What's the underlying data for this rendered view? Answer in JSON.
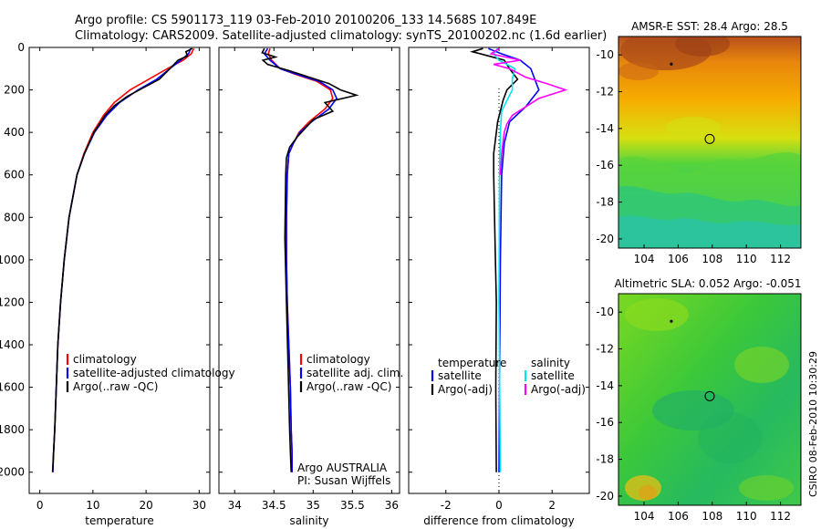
{
  "figure": {
    "title_line1": "Argo profile: CS 5901173_119 03-Feb-2010 20100206_133 14.568S 107.849E",
    "title_line2": "Climatology: CARS2009. Satellite-adjusted climatology: synTS_20100202.nc (1.6d earlier)",
    "side_stamp": "CSIRO 08-Feb-2010 10:30:29"
  },
  "colors": {
    "climatology": "#ff0000",
    "satellite": "#0000ff",
    "argo": "#000000",
    "cyan": "#00e5ee",
    "magenta": "#ff00ff"
  },
  "chart_data": [
    {
      "type": "line",
      "id": "temperature",
      "xlabel": "temperature",
      "ylabel": "",
      "xlim": [
        -2,
        32
      ],
      "ylim": [
        2100,
        0
      ],
      "xticks": [
        0,
        10,
        20,
        30
      ],
      "yticks": [
        0,
        200,
        400,
        600,
        800,
        1000,
        1200,
        1400,
        1600,
        1800,
        2000
      ],
      "legend": [
        "climatology",
        "satellite-adjusted climatology",
        "Argo(..raw -QC)"
      ],
      "series": [
        {
          "name": "climatology",
          "color": "#ff0000",
          "x": [
            29.0,
            28.5,
            27.0,
            24.0,
            20.5,
            17.0,
            14.0,
            12.0,
            10.0,
            8.3,
            7.0,
            5.5,
            4.6,
            3.9,
            3.4,
            3.1,
            2.8,
            2.6,
            2.45
          ],
          "y": [
            5,
            30,
            60,
            100,
            150,
            200,
            260,
            320,
            400,
            500,
            600,
            800,
            1000,
            1200,
            1400,
            1600,
            1800,
            1900,
            2000
          ]
        },
        {
          "name": "satellite-adjusted climatology",
          "color": "#0000ff",
          "x": [
            28.4,
            28.0,
            26.5,
            24.5,
            22.0,
            18.5,
            15.0,
            12.6,
            10.3,
            8.4,
            7.0,
            5.5,
            4.6,
            3.9,
            3.4,
            3.1,
            2.8,
            2.6,
            2.45
          ],
          "y": [
            5,
            30,
            60,
            100,
            150,
            200,
            260,
            320,
            400,
            500,
            600,
            800,
            1000,
            1200,
            1400,
            1600,
            1800,
            1900,
            2000
          ]
        },
        {
          "name": "Argo(..raw -QC)",
          "color": "#000000",
          "x": [
            28.7,
            27.5,
            27.8,
            26.0,
            24.5,
            22.5,
            19.5,
            16.5,
            14.0,
            12.3,
            10.2,
            8.4,
            7.0,
            5.5,
            4.6,
            3.9,
            3.4,
            3.1,
            2.8,
            2.6,
            2.4
          ],
          "y": [
            5,
            20,
            40,
            60,
            100,
            150,
            190,
            230,
            275,
            320,
            400,
            500,
            600,
            800,
            1000,
            1200,
            1400,
            1600,
            1800,
            1900,
            2000
          ]
        }
      ]
    },
    {
      "type": "line",
      "id": "salinity",
      "xlabel": "salinity",
      "xlim": [
        33.8,
        36.1
      ],
      "ylim": [
        2100,
        0
      ],
      "xticks": [
        34,
        34.5,
        35,
        35.5,
        36
      ],
      "legend": [
        "climatology",
        "satellite adj. clim.",
        "Argo(..raw -QC)"
      ],
      "annotations": [
        "Argo AUSTRALIA",
        "PI: Susan Wijffels"
      ],
      "series": [
        {
          "name": "climatology",
          "color": "#ff0000",
          "x": [
            34.45,
            34.43,
            34.47,
            34.58,
            34.8,
            35.05,
            35.22,
            35.25,
            35.15,
            34.95,
            34.82,
            34.75,
            34.69,
            34.67,
            34.66,
            34.66,
            34.67,
            34.69,
            34.71,
            34.72,
            34.73,
            34.73
          ],
          "y": [
            5,
            30,
            60,
            100,
            130,
            160,
            200,
            240,
            290,
            350,
            400,
            450,
            500,
            600,
            800,
            1000,
            1200,
            1400,
            1600,
            1800,
            1900,
            2000
          ]
        },
        {
          "name": "satellite adj. clim.",
          "color": "#0000ff",
          "x": [
            34.42,
            34.38,
            34.45,
            34.58,
            34.82,
            35.08,
            35.25,
            35.3,
            35.2,
            34.98,
            34.83,
            34.75,
            34.69,
            34.67,
            34.66,
            34.66,
            34.67,
            34.69,
            34.71,
            34.72,
            34.73,
            34.73
          ],
          "y": [
            5,
            30,
            60,
            100,
            130,
            160,
            200,
            240,
            290,
            350,
            400,
            450,
            500,
            600,
            800,
            1000,
            1200,
            1400,
            1600,
            1800,
            1900,
            2000
          ]
        },
        {
          "name": "Argo(..raw -QC)",
          "color": "#000000",
          "x": [
            34.38,
            34.35,
            34.52,
            34.36,
            34.42,
            34.7,
            34.95,
            35.2,
            35.35,
            35.55,
            35.15,
            35.25,
            35.0,
            34.9,
            34.8,
            34.7,
            34.66,
            34.65,
            34.64,
            34.66,
            34.68,
            34.7,
            34.71,
            34.72
          ],
          "y": [
            5,
            25,
            45,
            60,
            80,
            110,
            140,
            170,
            200,
            225,
            260,
            300,
            340,
            380,
            420,
            470,
            520,
            600,
            900,
            1200,
            1500,
            1800,
            1900,
            2000
          ]
        }
      ]
    },
    {
      "type": "line",
      "id": "difference",
      "xlabel": "difference from climatology",
      "xlim": [
        -3.4,
        3.4
      ],
      "ylim": [
        2100,
        0
      ],
      "xticks": [
        -2,
        0,
        2
      ],
      "legend_left_title": "temperature",
      "legend_right_title": "salinity",
      "legend": [
        "satellite",
        "Argo(-adj)",
        "satellite",
        "Argo(-adj)"
      ],
      "series": [
        {
          "name": "temperature satellite",
          "color": "#0000ff",
          "x": [
            -0.4,
            0.1,
            0.8,
            1.2,
            1.5,
            1.0,
            0.4,
            0.2,
            0.1,
            0.05,
            0.0
          ],
          "y": [
            5,
            30,
            60,
            100,
            200,
            280,
            350,
            450,
            600,
            1000,
            2000
          ]
        },
        {
          "name": "temperature Argo(-adj)",
          "color": "#000000",
          "x": [
            -0.6,
            -1.0,
            -0.4,
            0.2,
            0.4,
            0.7,
            0.3,
            0.15,
            0.05,
            -0.05,
            -0.1,
            -0.2,
            -0.2,
            -0.15,
            -0.1,
            -0.12,
            -0.1
          ],
          "y": [
            5,
            20,
            40,
            60,
            100,
            150,
            200,
            250,
            300,
            350,
            400,
            500,
            600,
            900,
            1200,
            1600,
            2000
          ]
        },
        {
          "name": "salinity satellite",
          "color": "#00e5ee",
          "x": [
            -0.05,
            -0.2,
            0.0,
            0.6,
            0.5,
            0.5,
            0.3,
            0.1,
            0.05,
            0.02,
            0.0,
            0.05
          ],
          "y": [
            5,
            30,
            60,
            100,
            150,
            200,
            250,
            300,
            400,
            600,
            1200,
            2000
          ]
        },
        {
          "name": "salinity Argo(-adj)",
          "color": "#ff00ff",
          "x": [
            0.0,
            -0.3,
            0.8,
            -0.2,
            0.4,
            1.0,
            1.8,
            2.5,
            1.5,
            1.0,
            0.5,
            0.3,
            0.2,
            0.1,
            0.05
          ],
          "y": [
            5,
            30,
            60,
            80,
            100,
            140,
            170,
            200,
            240,
            280,
            320,
            360,
            400,
            500,
            600
          ]
        }
      ]
    },
    {
      "type": "heatmap",
      "id": "sst",
      "title": "AMSR-E SST: 28.4 Argo: 28.5",
      "xlim": [
        102.5,
        113.2
      ],
      "ylim": [
        -20.5,
        -9.0
      ],
      "xticks": [
        104,
        106,
        108,
        110,
        112
      ],
      "yticks": [
        -10,
        -12,
        -14,
        -16,
        -18,
        -20
      ],
      "marker": {
        "lon": 107.85,
        "lat": -14.57
      },
      "dot": {
        "lon": 105.6,
        "lat": -10.5
      }
    },
    {
      "type": "heatmap",
      "id": "sla",
      "title": "Altimetric SLA: 0.052 Argo: -0.051",
      "xlim": [
        102.5,
        113.2
      ],
      "ylim": [
        -20.5,
        -9.0
      ],
      "xticks": [
        104,
        106,
        108,
        110,
        112
      ],
      "yticks": [
        -10,
        -12,
        -14,
        -16,
        -18,
        -20
      ],
      "marker": {
        "lon": 107.85,
        "lat": -14.57
      },
      "dot": {
        "lon": 105.6,
        "lat": -10.5
      }
    }
  ]
}
